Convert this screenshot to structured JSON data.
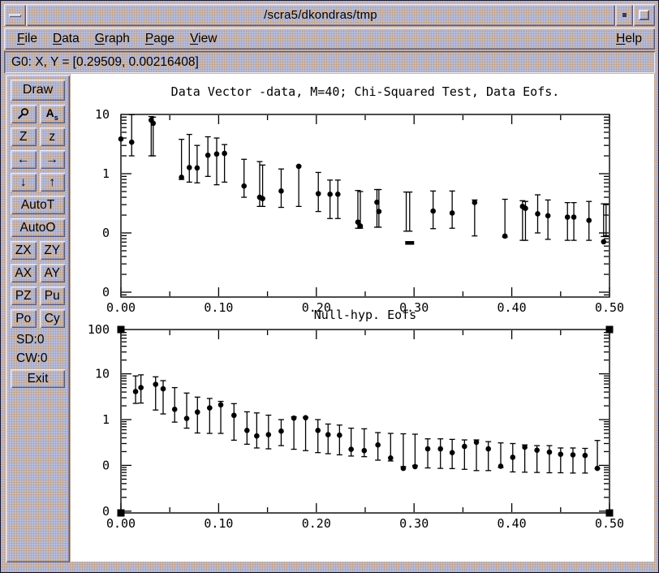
{
  "titlebar": {
    "title": "/scra5/dkondras/tmp"
  },
  "menu": {
    "items": [
      {
        "label": "File"
      },
      {
        "label": "Data"
      },
      {
        "label": "Graph"
      },
      {
        "label": "Page"
      },
      {
        "label": "View"
      }
    ],
    "help": {
      "label": "Help"
    }
  },
  "statusbar": {
    "text": "G0: X, Y = [0.29509, 0.00216408]"
  },
  "sidebar": {
    "rows": [
      {
        "kind": "wide",
        "buttons": [
          {
            "label": "Draw",
            "name": "draw-button"
          }
        ]
      },
      {
        "kind": "pair",
        "buttons": [
          {
            "icon": "magnifier",
            "name": "magnify-button"
          },
          {
            "icon": "text-size",
            "label": "As",
            "name": "font-size-button"
          }
        ]
      },
      {
        "kind": "pair",
        "buttons": [
          {
            "label": "Z",
            "name": "zoom-in-button"
          },
          {
            "label": "z",
            "name": "zoom-out-button"
          }
        ]
      },
      {
        "kind": "pair",
        "buttons": [
          {
            "label": "←",
            "name": "pan-left-button",
            "arrow": true
          },
          {
            "label": "→",
            "name": "pan-right-button",
            "arrow": true
          }
        ]
      },
      {
        "kind": "pair",
        "buttons": [
          {
            "label": "↓",
            "name": "pan-down-button",
            "arrow": true
          },
          {
            "label": "↑",
            "name": "pan-up-button",
            "arrow": true
          }
        ]
      },
      {
        "kind": "wide",
        "buttons": [
          {
            "label": "AutoT",
            "name": "autot-button"
          }
        ]
      },
      {
        "kind": "wide",
        "buttons": [
          {
            "label": "AutoO",
            "name": "autoo-button"
          }
        ]
      },
      {
        "kind": "pair",
        "buttons": [
          {
            "label": "ZX",
            "name": "zx-button"
          },
          {
            "label": "ZY",
            "name": "zy-button"
          }
        ]
      },
      {
        "kind": "pair",
        "buttons": [
          {
            "label": "AX",
            "name": "ax-button"
          },
          {
            "label": "AY",
            "name": "ay-button"
          }
        ]
      },
      {
        "kind": "pair",
        "buttons": [
          {
            "label": "PZ",
            "name": "pz-button"
          },
          {
            "label": "Pu",
            "name": "pu-button"
          }
        ]
      },
      {
        "kind": "pair",
        "buttons": [
          {
            "label": "Po",
            "name": "po-button"
          },
          {
            "label": "Cy",
            "name": "cy-button"
          }
        ]
      },
      {
        "kind": "label",
        "buttons": [
          {
            "label": "SD:0",
            "name": "sd-counter"
          }
        ]
      },
      {
        "kind": "label",
        "buttons": [
          {
            "label": "CW:0",
            "name": "cw-counter"
          }
        ]
      },
      {
        "kind": "wide",
        "buttons": [
          {
            "label": "Exit",
            "name": "exit-button"
          }
        ]
      }
    ]
  },
  "colors": {
    "frame_base": "#b6bdde",
    "frame_speckle": "#c79d74",
    "bevel_light": "#eceaf4",
    "bevel_dark": "#5c5a78",
    "canvas": "#ffffff",
    "ink": "#000000"
  },
  "chart_data": [
    {
      "type": "scatter",
      "title": "Data Vector -data, M=40; Chi-Squared Test, Data Eofs.",
      "xlabel": "",
      "ylabel": "",
      "xlim": [
        0,
        0.5
      ],
      "x_tick_step": 0.05,
      "x_label_step": 0.1,
      "x_tick_labels": [
        "0.00",
        "0.10",
        "0.20",
        "0.30",
        "0.40",
        "0.50"
      ],
      "y_scale": "log",
      "ylim": [
        0.0083,
        10
      ],
      "y_ticks": [
        {
          "value": 10,
          "label": "10"
        },
        {
          "value": 1,
          "label": "1"
        },
        {
          "value": 0.1,
          "label": "0"
        },
        {
          "value": 0.01,
          "label": "0"
        }
      ],
      "grid": false,
      "legend": null,
      "selected": false,
      "points_format": [
        "x",
        "y",
        "err_lo",
        "err_hi",
        "marker"
      ],
      "points": [
        [
          0.0,
          3.85,
          null,
          null
        ],
        [
          0.011,
          3.4,
          2.0,
          9.9
        ],
        [
          0.031,
          8.0,
          2.0,
          9.2
        ],
        [
          0.033,
          7.1,
          2.0,
          9.0
        ],
        [
          0.062,
          0.87,
          0.8,
          3.8
        ],
        [
          0.07,
          1.27,
          0.72,
          4.6
        ],
        [
          0.078,
          1.25,
          0.7,
          3.0
        ],
        [
          0.089,
          2.05,
          0.9,
          4.2
        ],
        [
          0.098,
          2.15,
          0.65,
          4.0
        ],
        [
          0.106,
          2.2,
          0.72,
          3.1
        ],
        [
          0.126,
          0.62,
          0.4,
          1.75
        ],
        [
          0.142,
          0.4,
          0.28,
          1.6
        ],
        [
          0.145,
          0.38,
          0.28,
          1.4
        ],
        [
          0.164,
          0.51,
          0.27,
          1.2
        ],
        [
          0.182,
          1.33,
          0.28,
          1.35
        ],
        [
          0.202,
          0.46,
          0.23,
          1.05
        ],
        [
          0.214,
          0.45,
          0.175,
          0.78
        ],
        [
          0.222,
          0.45,
          0.175,
          0.78
        ],
        [
          0.2425,
          0.152,
          0.12,
          0.52
        ],
        [
          0.245,
          0.131,
          0.12,
          0.5
        ],
        [
          0.262,
          0.33,
          0.125,
          0.54
        ],
        [
          0.264,
          0.23,
          0.125,
          0.54
        ],
        [
          0.292,
          null,
          0.107,
          0.49
        ],
        [
          0.2955,
          0.068,
          0.107,
          0.49,
          "dash"
        ],
        [
          0.3195,
          0.234,
          0.118,
          0.51
        ],
        [
          0.339,
          0.217,
          0.12,
          0.51
        ],
        [
          0.362,
          0.327,
          0.089,
          0.36
        ],
        [
          0.393,
          0.0885,
          0.085,
          0.37
        ],
        [
          0.411,
          0.28,
          0.075,
          0.35
        ],
        [
          0.414,
          0.26,
          0.075,
          0.34
        ],
        [
          0.4265,
          0.21,
          0.1,
          0.44
        ],
        [
          0.437,
          0.195,
          0.078,
          0.36
        ],
        [
          0.457,
          0.185,
          0.075,
          0.325
        ],
        [
          0.4635,
          0.185,
          0.075,
          0.325
        ],
        [
          0.479,
          0.163,
          0.075,
          0.34
        ],
        [
          0.494,
          0.071,
          0.087,
          0.31
        ],
        [
          0.4965,
          null,
          0.087,
          0.31
        ]
      ]
    },
    {
      "type": "scatter",
      "title": "Null-hyp. Eofs",
      "xlabel": "",
      "ylabel": "",
      "xlim": [
        0,
        0.5
      ],
      "x_tick_step": 0.05,
      "x_label_step": 0.1,
      "x_tick_labels": [
        "0.00",
        "0.10",
        "0.20",
        "0.30",
        "0.40",
        "0.50"
      ],
      "y_scale": "log",
      "ylim": [
        0.0091,
        100
      ],
      "y_ticks": [
        {
          "value": 100,
          "label": "100"
        },
        {
          "value": 10,
          "label": "10"
        },
        {
          "value": 1,
          "label": "1"
        },
        {
          "value": 0.1,
          "label": "0"
        },
        {
          "value": 0.01,
          "label": "0"
        }
      ],
      "grid": false,
      "legend": null,
      "selected": true,
      "points_format": [
        "x",
        "y",
        "err_lo",
        "err_hi"
      ],
      "points": [
        [
          0.015,
          4.1,
          2.26,
          9.0
        ],
        [
          0.0205,
          5.0,
          2.3,
          9.5
        ],
        [
          0.0355,
          5.9,
          1.62,
          8.6
        ],
        [
          0.0432,
          4.7,
          1.33,
          7.1
        ],
        [
          0.055,
          1.68,
          0.88,
          5.0
        ],
        [
          0.0673,
          1.06,
          0.65,
          3.8
        ],
        [
          0.0783,
          1.46,
          0.51,
          3.1
        ],
        [
          0.0908,
          1.8,
          0.5,
          2.9
        ],
        [
          0.1022,
          2.1,
          0.5,
          2.5
        ],
        [
          0.1157,
          1.24,
          0.355,
          2.23
        ],
        [
          0.129,
          0.58,
          0.29,
          1.48
        ],
        [
          0.139,
          0.44,
          0.24,
          1.4
        ],
        [
          0.151,
          0.47,
          0.23,
          1.25
        ],
        [
          0.164,
          0.56,
          0.27,
          1.0
        ],
        [
          0.177,
          1.08,
          0.225,
          1.15
        ],
        [
          0.189,
          1.1,
          0.21,
          1.12
        ],
        [
          0.2016,
          0.58,
          0.19,
          1.0
        ],
        [
          0.212,
          0.47,
          0.18,
          0.8
        ],
        [
          0.2237,
          0.457,
          0.17,
          0.76
        ],
        [
          0.2356,
          0.225,
          0.16,
          0.65
        ],
        [
          0.249,
          0.21,
          0.155,
          0.63
        ],
        [
          0.263,
          0.28,
          0.13,
          0.52
        ],
        [
          0.276,
          0.145,
          0.125,
          0.5
        ],
        [
          0.289,
          0.086,
          0.094,
          0.49
        ],
        [
          0.301,
          0.094,
          0.1,
          0.48
        ],
        [
          0.314,
          0.23,
          0.088,
          0.38
        ],
        [
          0.327,
          0.23,
          0.086,
          0.38
        ],
        [
          0.339,
          0.19,
          0.085,
          0.37
        ],
        [
          0.3516,
          0.26,
          0.082,
          0.36
        ],
        [
          0.3638,
          0.32,
          0.077,
          0.36
        ],
        [
          0.376,
          0.23,
          0.077,
          0.33
        ],
        [
          0.3887,
          0.096,
          0.09,
          0.31
        ],
        [
          0.401,
          0.15,
          0.072,
          0.3
        ],
        [
          0.4133,
          0.25,
          0.071,
          0.28
        ],
        [
          0.4258,
          0.215,
          0.07,
          0.27
        ],
        [
          0.4385,
          0.195,
          0.069,
          0.27
        ],
        [
          0.45,
          0.175,
          0.069,
          0.24
        ],
        [
          0.4626,
          0.17,
          0.068,
          0.24
        ],
        [
          0.475,
          0.165,
          0.068,
          0.235
        ],
        [
          0.4876,
          0.086,
          0.085,
          0.35
        ]
      ]
    }
  ]
}
